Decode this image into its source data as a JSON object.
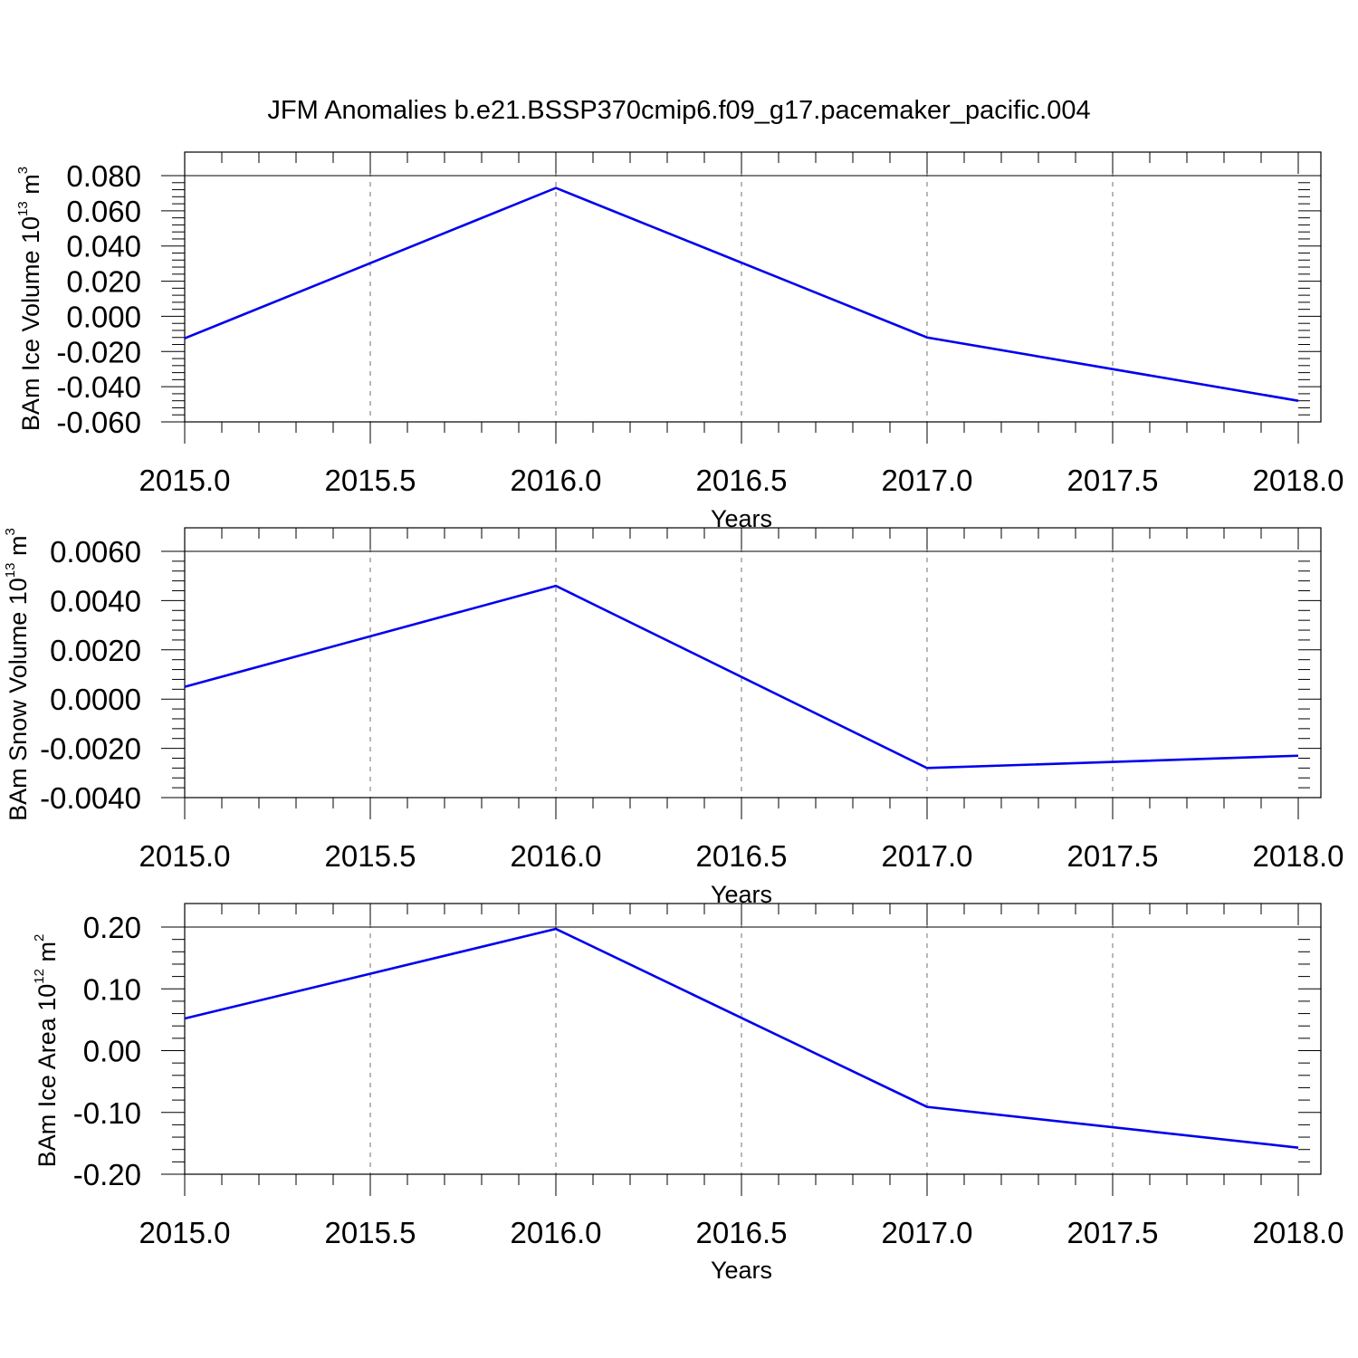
{
  "figure": {
    "title": "JFM Anomalies b.e21.BSSP370cmip6.f09_g17.pacemaker_pacific.004"
  },
  "colors": {
    "line": "#0000ee",
    "axis": "#000000"
  },
  "chart_data": [
    {
      "type": "line",
      "ylabel": "BAm Ice Volume 10",
      "ylabel_exp": "13",
      "ylabel_unit": " m",
      "ylabel_unit_exp": "3",
      "xlabel": "Years",
      "x": [
        2015,
        2016,
        2017,
        2018
      ],
      "series": [
        {
          "values": [
            -0.0125,
            0.073,
            -0.012,
            -0.048
          ]
        }
      ],
      "xlim": [
        2015,
        2018
      ],
      "ylim": [
        -0.06,
        0.08
      ],
      "xticks": [
        2015.0,
        2015.5,
        2016.0,
        2016.5,
        2017.0,
        2017.5,
        2018.0
      ],
      "xtick_labels": [
        "2015.0",
        "2015.5",
        "2016.0",
        "2016.5",
        "2017.0",
        "2017.5",
        "2018.0"
      ],
      "yticks": [
        0.08,
        0.06,
        0.04,
        0.02,
        0.0,
        -0.02,
        -0.04,
        -0.06
      ],
      "ytick_labels": [
        "0.080",
        "0.060",
        "0.040",
        "0.020",
        "0.000",
        "-0.020",
        "-0.040",
        "-0.060"
      ],
      "grid": "vertical dashed"
    },
    {
      "type": "line",
      "ylabel": "BAm Snow Volume 10",
      "ylabel_exp": "13",
      "ylabel_unit": " m",
      "ylabel_unit_exp": "3",
      "xlabel": "Years",
      "x": [
        2015,
        2016,
        2017,
        2018
      ],
      "series": [
        {
          "values": [
            0.0005,
            0.0046,
            -0.0028,
            -0.0023
          ]
        }
      ],
      "xlim": [
        2015,
        2018
      ],
      "ylim": [
        -0.004,
        0.006
      ],
      "xticks": [
        2015.0,
        2015.5,
        2016.0,
        2016.5,
        2017.0,
        2017.5,
        2018.0
      ],
      "xtick_labels": [
        "2015.0",
        "2015.5",
        "2016.0",
        "2016.5",
        "2017.0",
        "2017.5",
        "2018.0"
      ],
      "yticks": [
        0.006,
        0.004,
        0.002,
        0.0,
        -0.002,
        -0.004
      ],
      "ytick_labels": [
        "0.0060",
        "0.0040",
        "0.0020",
        "0.0000",
        "-0.0020",
        "-0.0040"
      ],
      "grid": "vertical dashed"
    },
    {
      "type": "line",
      "ylabel": "BAm Ice Area 10",
      "ylabel_exp": "12",
      "ylabel_unit": " m",
      "ylabel_unit_exp": "2",
      "xlabel": "Years",
      "x": [
        2015,
        2016,
        2017,
        2018
      ],
      "series": [
        {
          "values": [
            0.052,
            0.197,
            -0.091,
            -0.157
          ]
        }
      ],
      "xlim": [
        2015,
        2018
      ],
      "ylim": [
        -0.2,
        0.2
      ],
      "xticks": [
        2015.0,
        2015.5,
        2016.0,
        2016.5,
        2017.0,
        2017.5,
        2018.0
      ],
      "xtick_labels": [
        "2015.0",
        "2015.5",
        "2016.0",
        "2016.5",
        "2017.0",
        "2017.5",
        "2018.0"
      ],
      "yticks": [
        0.2,
        0.1,
        0.0,
        -0.1,
        -0.2
      ],
      "ytick_labels": [
        "0.20",
        "0.10",
        "0.00",
        "-0.10",
        "-0.20"
      ],
      "grid": "vertical dashed"
    }
  ]
}
